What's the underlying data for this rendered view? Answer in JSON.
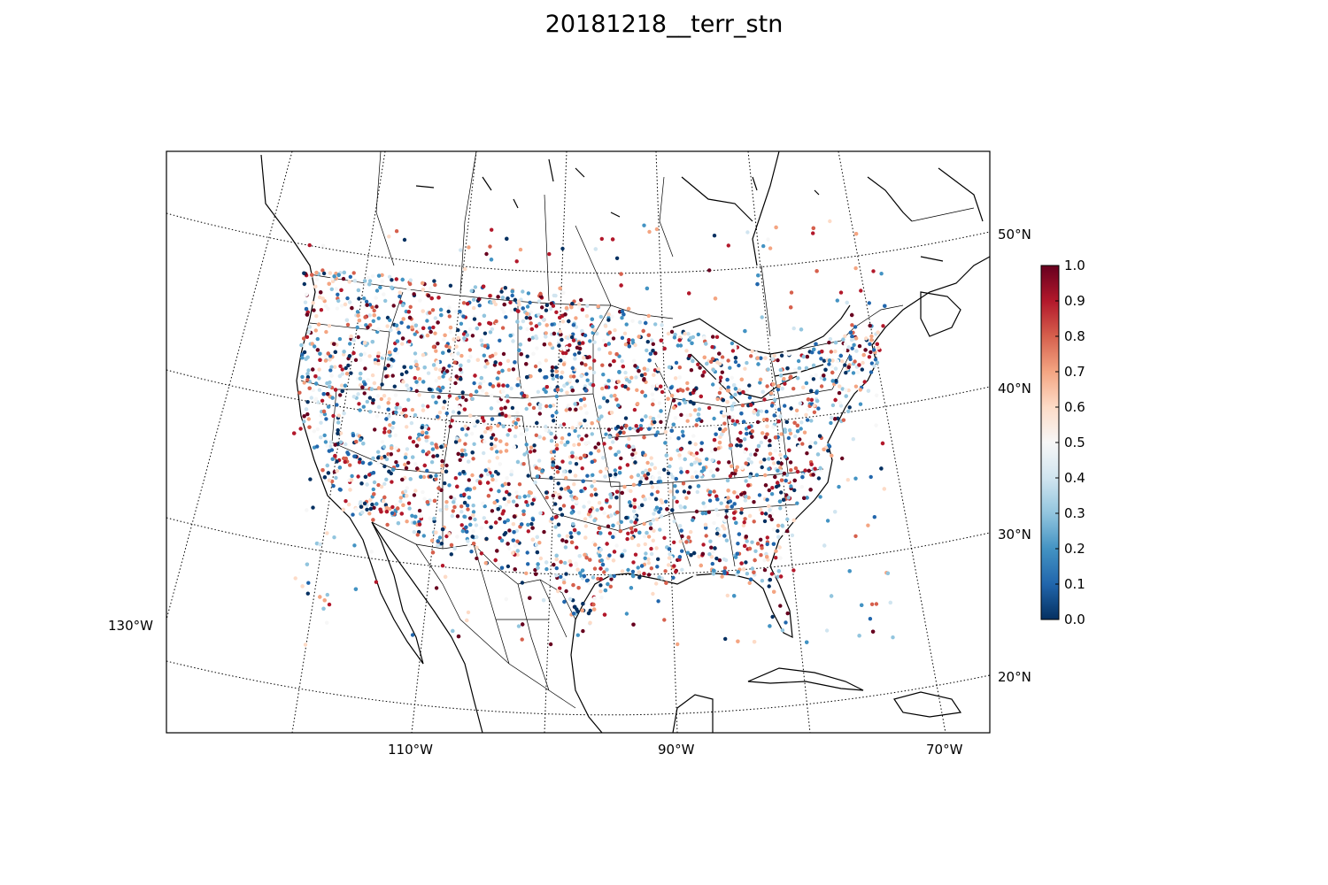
{
  "figure": {
    "title": "20181218__terr_stn"
  },
  "map": {
    "projection": "lambert-conformal",
    "graticule": {
      "meridian_labels": [
        "130°W",
        "110°W",
        "90°W",
        "70°W"
      ],
      "parallel_labels": [
        "50°N",
        "40°N",
        "30°N",
        "20°N"
      ],
      "line_style": "dotted"
    },
    "boundaries": [
      "coastlines",
      "countries",
      "states"
    ],
    "station_markers": {
      "variable": "terr_stn",
      "value_range": [
        0.0,
        1.0
      ],
      "colormap": "RdBu_r",
      "low_color": "#053061",
      "mid_color": "#f7f7f7",
      "high_color": "#67001f"
    }
  },
  "colorbar": {
    "ticks": [
      "0.0",
      "0.1",
      "0.2",
      "0.3",
      "0.4",
      "0.5",
      "0.6",
      "0.7",
      "0.8",
      "0.9",
      "1.0"
    ],
    "placement": "right"
  }
}
